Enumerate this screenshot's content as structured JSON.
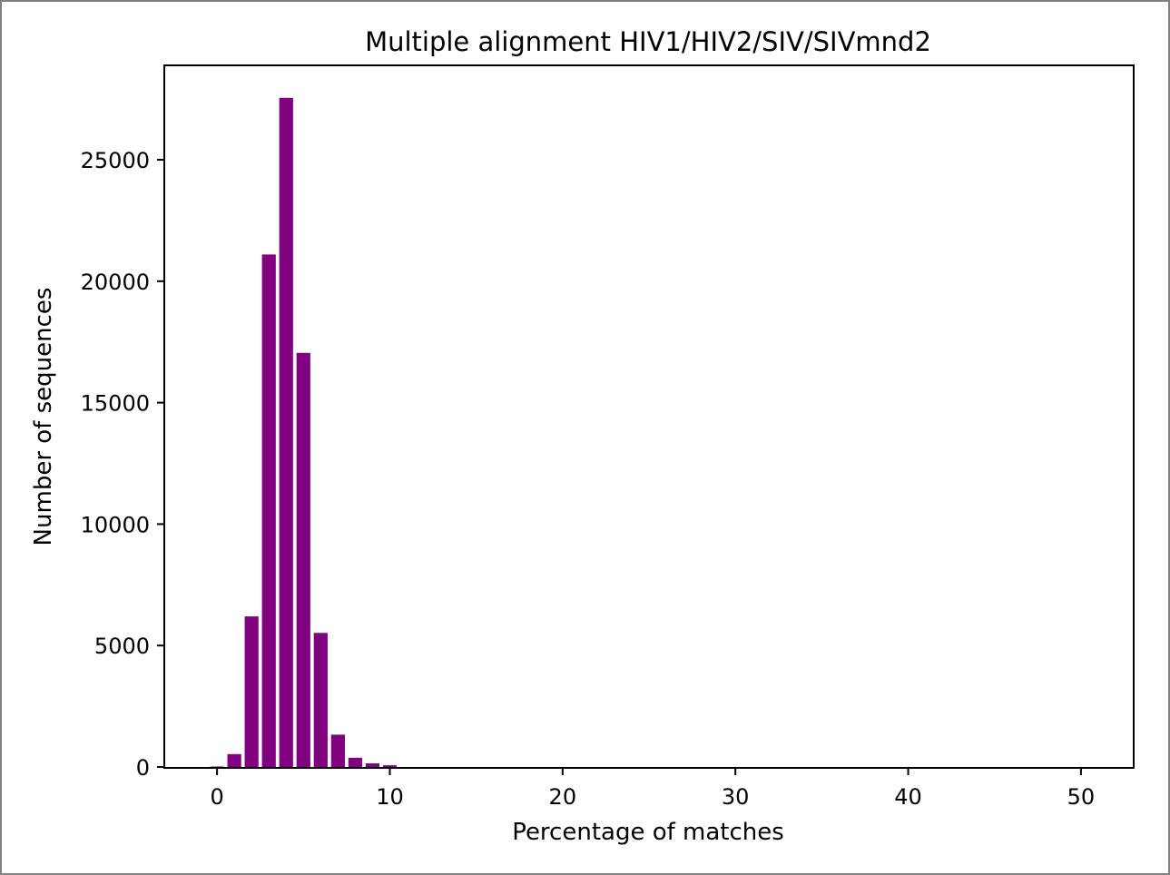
{
  "chart_data": {
    "type": "bar",
    "title": "Multiple alignment HIV1/HIV2/SIV/SIVmnd2",
    "xlabel": "Percentage of matches",
    "ylabel": "Number of sequences",
    "xlim": [
      -3,
      53
    ],
    "ylim": [
      0,
      28850
    ],
    "xticks": [
      0,
      10,
      20,
      30,
      40,
      50
    ],
    "yticks": [
      0,
      5000,
      10000,
      15000,
      20000,
      25000
    ],
    "grid": false,
    "legend": "none",
    "bar_color": "#800080",
    "bar_width": 0.8,
    "x": [
      0,
      1,
      2,
      3,
      4,
      5,
      6,
      7,
      8,
      9,
      10
    ],
    "values": [
      20,
      530,
      6200,
      21100,
      27550,
      17050,
      5520,
      1330,
      380,
      150,
      70
    ]
  }
}
